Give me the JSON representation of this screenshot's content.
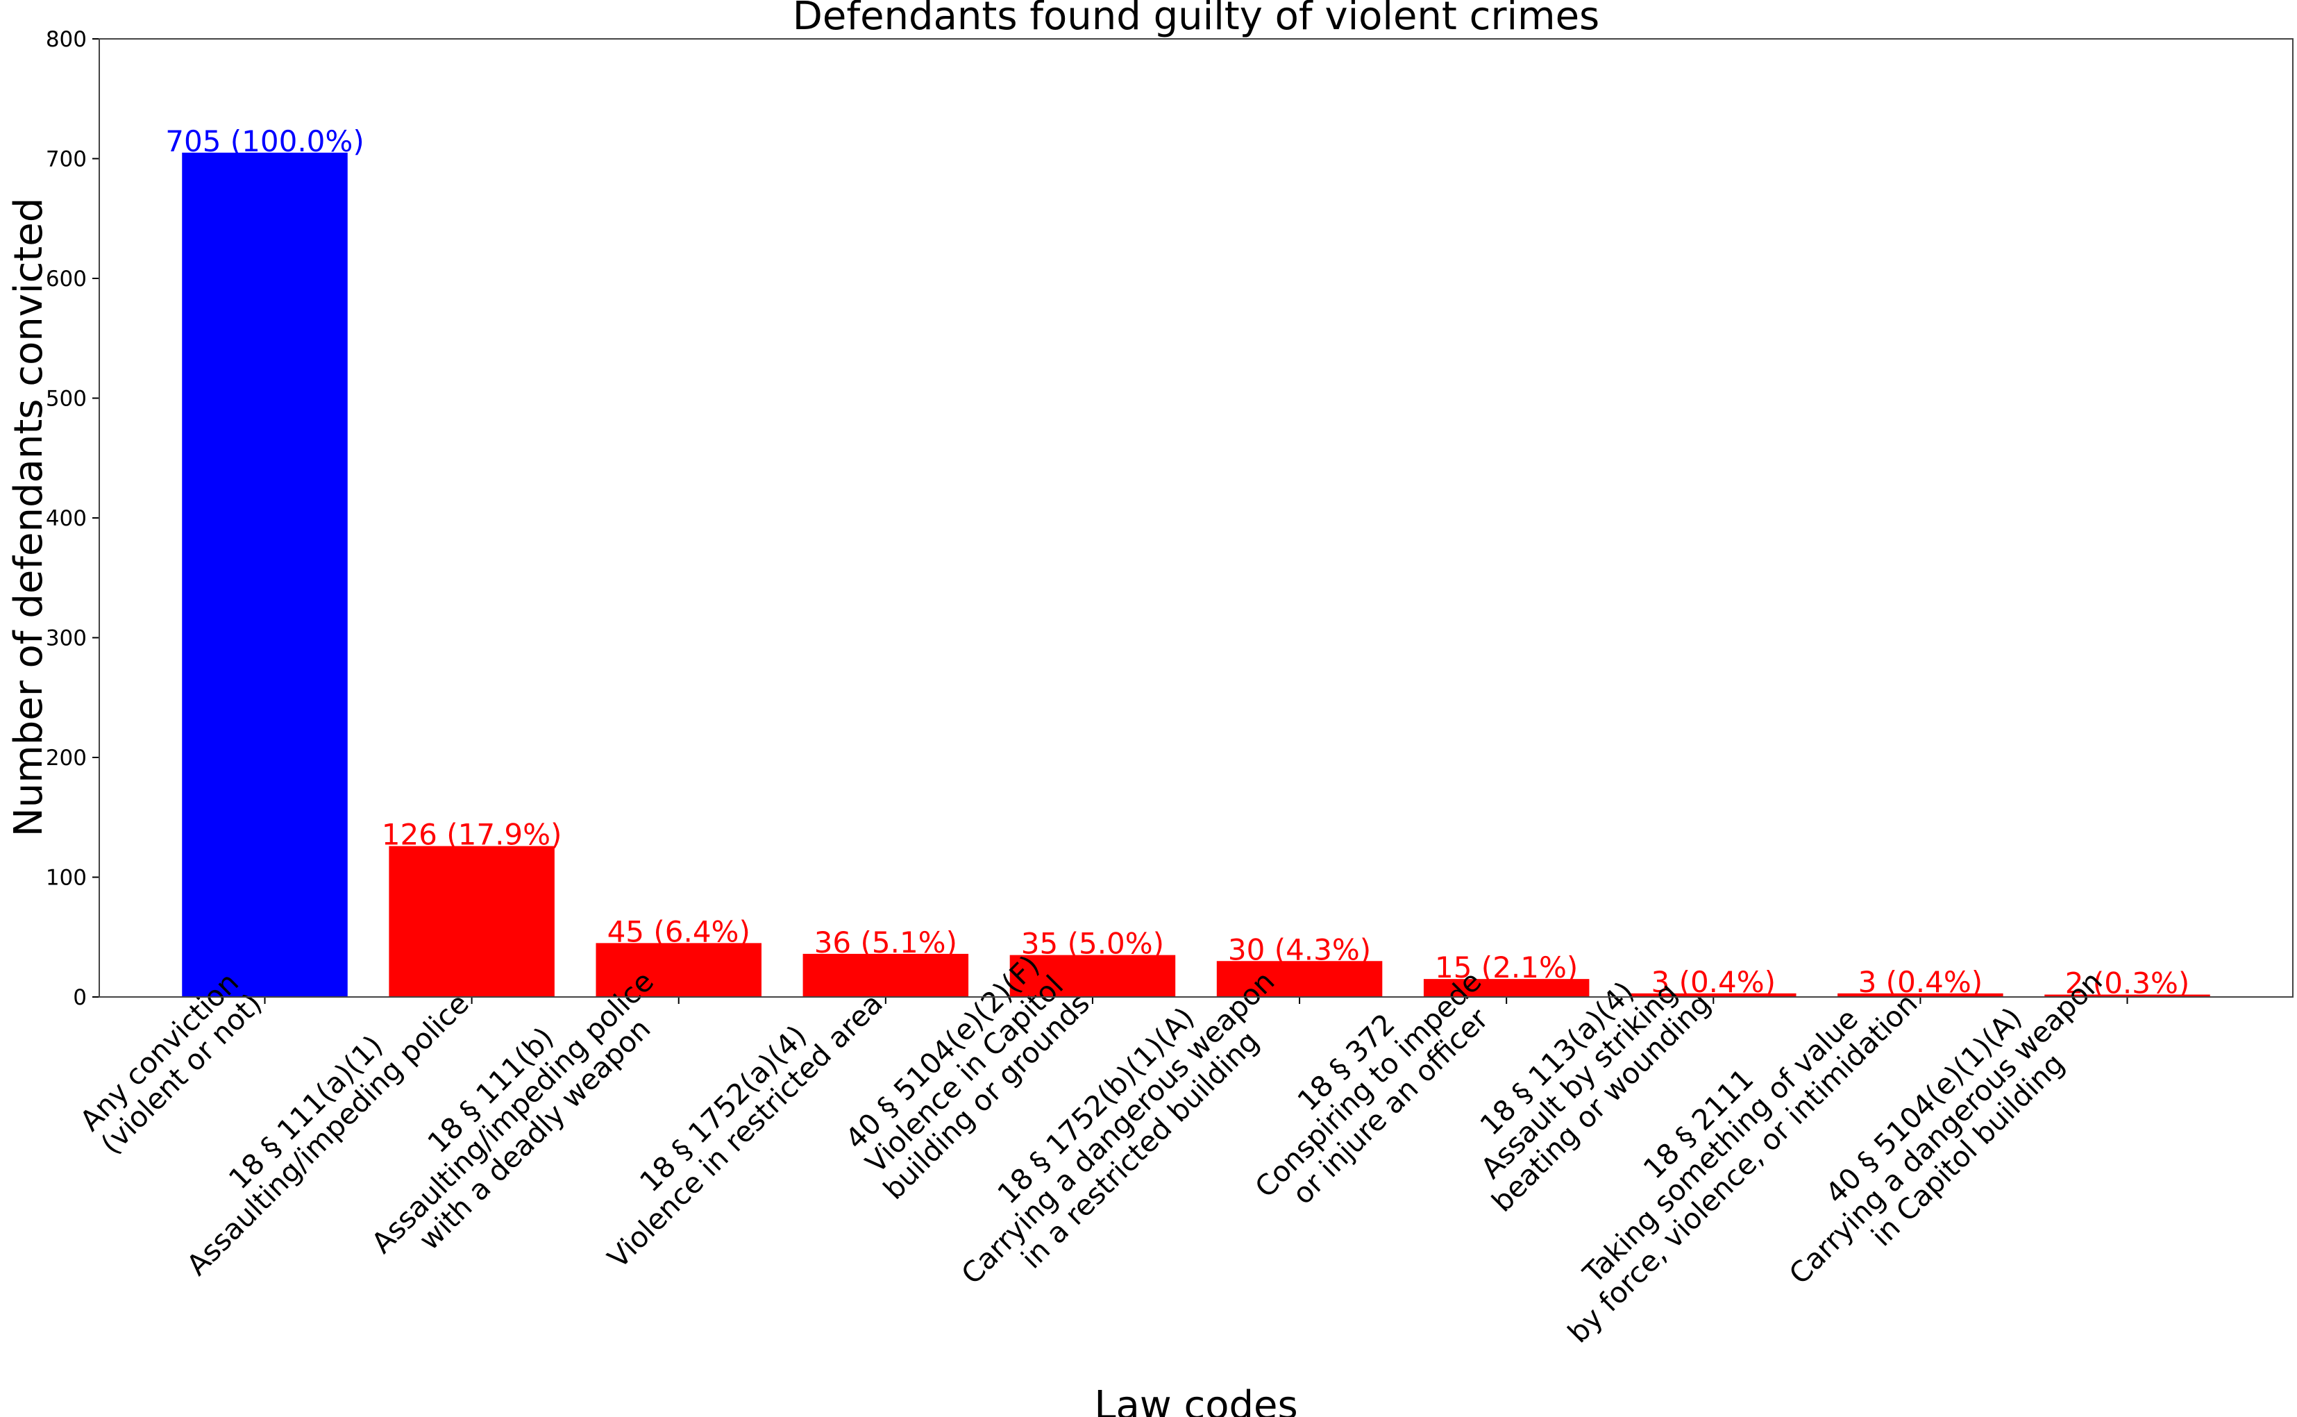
{
  "chart_data": {
    "type": "bar",
    "title": "Defendants found guilty of violent crimes",
    "xlabel": "Law codes",
    "ylabel": "Number of defendants convicted",
    "ylim": [
      0,
      800
    ],
    "yticks": [
      0,
      100,
      200,
      300,
      400,
      500,
      600,
      700,
      800
    ],
    "grid": false,
    "categories": [
      [
        "Any conviction",
        "(violent or not)"
      ],
      [
        "18 § 111(a)(1)",
        "Assaulting/impeding police"
      ],
      [
        "18 § 111(b)",
        "Assaulting/impeding police",
        "with a deadly weapon"
      ],
      [
        "18 § 1752(a)(4)",
        "Violence in restricted area"
      ],
      [
        "40 § 5104(e)(2)(F)",
        "Violence in Capitol",
        "building or grounds"
      ],
      [
        "18 § 1752(b)(1)(A)",
        "Carrying a dangerous weapon",
        "in a restricted building"
      ],
      [
        "18 § 372",
        "Conspiring to impede",
        "or injure an officer"
      ],
      [
        "18 § 113(a)(4)",
        "Assault by striking",
        "beating or wounding"
      ],
      [
        "18 § 2111",
        "Taking something of value",
        "by force, violence, or intimidation"
      ],
      [
        "40 § 5104(e)(1)(A)",
        "Carrying a dangerous weapon",
        "in Capitol building"
      ]
    ],
    "values": [
      705,
      126,
      45,
      36,
      35,
      30,
      15,
      3,
      3,
      2
    ],
    "data_labels": [
      "705 (100.0%)",
      "126 (17.9%)",
      "45 (6.4%)",
      "36 (5.1%)",
      "35 (5.0%)",
      "30 (4.3%)",
      "15 (2.1%)",
      "3 (0.4%)",
      "3 (0.4%)",
      "2 (0.3%)"
    ],
    "colors": [
      "#0000ff",
      "#ff0000",
      "#ff0000",
      "#ff0000",
      "#ff0000",
      "#ff0000",
      "#ff0000",
      "#ff0000",
      "#ff0000",
      "#ff0000"
    ]
  }
}
